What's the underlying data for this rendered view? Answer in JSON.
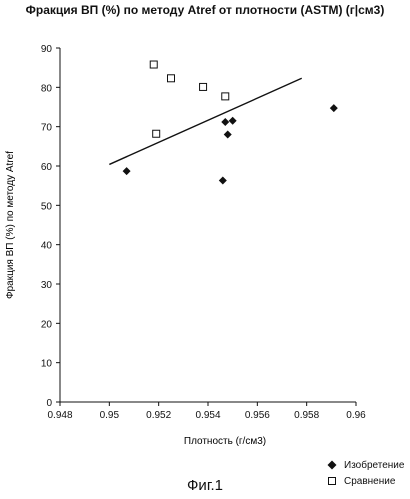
{
  "chart_data": {
    "type": "scatter",
    "title": "Фракция ВП (%) по методу Atref от плотности (ASTM) (г|см3)",
    "xlabel": "Плотность (г/см3)",
    "ylabel": "Фракция ВП (%) по методу Atref",
    "xlim": [
      0.948,
      0.96
    ],
    "ylim": [
      0,
      90
    ],
    "x_ticks": [
      "0.948",
      "0.95",
      "0.952",
      "0.954",
      "0.956",
      "0.958",
      "0.96"
    ],
    "x_tick_values": [
      0.948,
      0.95,
      0.952,
      0.954,
      0.956,
      0.958,
      0.96
    ],
    "y_ticks": [
      "0",
      "10",
      "20",
      "30",
      "40",
      "50",
      "60",
      "70",
      "80",
      "90"
    ],
    "y_tick_values": [
      0,
      10,
      20,
      30,
      40,
      50,
      60,
      70,
      80,
      90
    ],
    "grid": false,
    "legend_position": "bottom-right",
    "series": [
      {
        "name": "Изобретение",
        "marker": "diamond",
        "points": [
          {
            "x": 0.9507,
            "y": 58.7
          },
          {
            "x": 0.9546,
            "y": 56.3
          },
          {
            "x": 0.9547,
            "y": 71.2
          },
          {
            "x": 0.9548,
            "y": 68.0
          },
          {
            "x": 0.955,
            "y": 71.5
          },
          {
            "x": 0.9591,
            "y": 74.7
          }
        ]
      },
      {
        "name": "Сравнение",
        "marker": "square-open",
        "points": [
          {
            "x": 0.9518,
            "y": 85.8
          },
          {
            "x": 0.9519,
            "y": 68.2
          },
          {
            "x": 0.9525,
            "y": 82.3
          },
          {
            "x": 0.9538,
            "y": 80.1
          },
          {
            "x": 0.9547,
            "y": 77.7
          }
        ]
      }
    ],
    "trendline": {
      "x": [
        0.95,
        0.9578
      ],
      "y": [
        60.4,
        82.3
      ]
    }
  },
  "figure_caption": "Фиг.1",
  "colors": {
    "marks": "#111111",
    "background": "#ffffff"
  }
}
